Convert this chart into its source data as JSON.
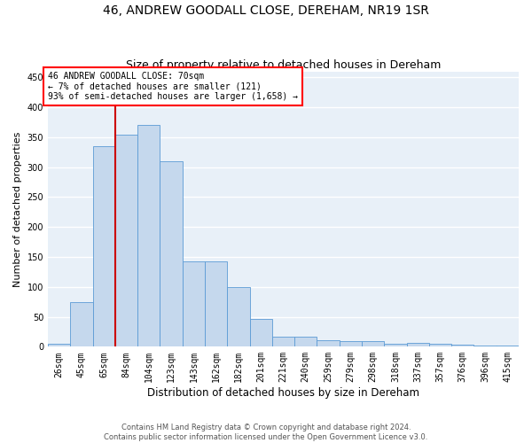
{
  "title": "46, ANDREW GOODALL CLOSE, DEREHAM, NR19 1SR",
  "subtitle": "Size of property relative to detached houses in Dereham",
  "xlabel": "Distribution of detached houses by size in Dereham",
  "ylabel": "Number of detached properties",
  "categories": [
    "26sqm",
    "45sqm",
    "65sqm",
    "84sqm",
    "104sqm",
    "123sqm",
    "143sqm",
    "162sqm",
    "182sqm",
    "201sqm",
    "221sqm",
    "240sqm",
    "259sqm",
    "279sqm",
    "298sqm",
    "318sqm",
    "337sqm",
    "357sqm",
    "376sqm",
    "396sqm",
    "415sqm"
  ],
  "values": [
    5,
    75,
    335,
    355,
    370,
    310,
    143,
    143,
    100,
    47,
    17,
    17,
    11,
    9,
    9,
    5,
    6,
    5,
    4,
    2,
    2
  ],
  "bar_color": "#c5d8ed",
  "bar_edge_color": "#5b9bd5",
  "red_line_x": 2.5,
  "annotation_text1": "46 ANDREW GOODALL CLOSE: 70sqm",
  "annotation_text2": "← 7% of detached houses are smaller (121)",
  "annotation_text3": "93% of semi-detached houses are larger (1,658) →",
  "annotation_box_color": "white",
  "annotation_box_edge_color": "red",
  "red_line_color": "#cc0000",
  "ylim": [
    0,
    460
  ],
  "yticks": [
    0,
    50,
    100,
    150,
    200,
    250,
    300,
    350,
    400,
    450
  ],
  "background_color": "#e8f0f8",
  "footer1": "Contains HM Land Registry data © Crown copyright and database right 2024.",
  "footer2": "Contains public sector information licensed under the Open Government Licence v3.0.",
  "grid_color": "white",
  "title_fontsize": 10,
  "subtitle_fontsize": 9,
  "tick_fontsize": 7,
  "ylabel_fontsize": 8,
  "xlabel_fontsize": 8.5,
  "annotation_fontsize": 7,
  "footer_fontsize": 6
}
